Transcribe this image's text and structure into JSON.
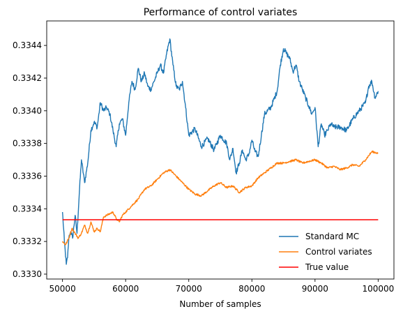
{
  "chart_data": {
    "type": "line",
    "title": "Performance of control variates",
    "xlabel": "Number of samples",
    "ylabel": "",
    "xlim": [
      47500,
      102500
    ],
    "ylim": [
      0.33297,
      0.33455
    ],
    "x_ticks": [
      50000,
      60000,
      70000,
      80000,
      90000,
      100000
    ],
    "x_tick_labels": [
      "50000",
      "60000",
      "70000",
      "80000",
      "90000",
      "100000"
    ],
    "y_ticks": [
      0.333,
      0.3332,
      0.3334,
      0.3336,
      0.3338,
      0.334,
      0.3342,
      0.3344
    ],
    "y_tick_labels": [
      "0.3330",
      "0.3332",
      "0.3334",
      "0.3336",
      "0.3338",
      "0.3340",
      "0.3342",
      "0.3344"
    ],
    "grid": false,
    "legend_position": "lower-right",
    "series": [
      {
        "name": "Standard MC",
        "color": "#1f77b4",
        "x": [
          50000,
          50300,
          50600,
          50800,
          51000,
          51300,
          51600,
          52000,
          52300,
          52700,
          53000,
          53500,
          54000,
          54500,
          55000,
          55500,
          56000,
          56500,
          57000,
          57500,
          58000,
          58500,
          59000,
          59500,
          60000,
          60500,
          61000,
          61500,
          62000,
          62500,
          63000,
          63500,
          64000,
          64500,
          65000,
          65500,
          66000,
          66500,
          67000,
          67500,
          68000,
          68500,
          69000,
          69500,
          70000,
          71000,
          72000,
          73000,
          74000,
          75000,
          76000,
          76500,
          77000,
          77500,
          78000,
          78500,
          79000,
          79500,
          80000,
          80500,
          81000,
          81500,
          82000,
          83000,
          84000,
          84500,
          85000,
          85500,
          86000,
          86500,
          87000,
          87500,
          88000,
          88500,
          89000,
          89500,
          90000,
          90500,
          91000,
          91500,
          92000,
          92500,
          93000,
          94000,
          95000,
          96000,
          97000,
          98000,
          98500,
          99000,
          99500,
          100000
        ],
        "values": [
          0.33338,
          0.3332,
          0.33306,
          0.3331,
          0.33322,
          0.33326,
          0.33322,
          0.33336,
          0.33325,
          0.33352,
          0.3337,
          0.33356,
          0.33368,
          0.33388,
          0.33393,
          0.3339,
          0.33405,
          0.334,
          0.33402,
          0.33398,
          0.33388,
          0.33378,
          0.33392,
          0.33395,
          0.33385,
          0.33405,
          0.33418,
          0.33413,
          0.33426,
          0.33418,
          0.33423,
          0.33415,
          0.33413,
          0.33418,
          0.33423,
          0.33428,
          0.33423,
          0.33435,
          0.33444,
          0.33428,
          0.33415,
          0.33413,
          0.33418,
          0.33402,
          0.33385,
          0.33389,
          0.33378,
          0.33383,
          0.33376,
          0.33385,
          0.3338,
          0.3337,
          0.33377,
          0.33362,
          0.33368,
          0.33376,
          0.3337,
          0.33373,
          0.33382,
          0.33375,
          0.33372,
          0.33385,
          0.33398,
          0.33402,
          0.33412,
          0.33428,
          0.33438,
          0.33435,
          0.33432,
          0.33424,
          0.33428,
          0.33418,
          0.33413,
          0.33408,
          0.33403,
          0.33398,
          0.33402,
          0.33378,
          0.33392,
          0.33385,
          0.33388,
          0.33392,
          0.3339,
          0.3339,
          0.33388,
          0.33395,
          0.334,
          0.33405,
          0.33415,
          0.33418,
          0.33408,
          0.33412
        ]
      },
      {
        "name": "Control variates",
        "color": "#ff7f0e",
        "x": [
          50000,
          50500,
          51000,
          51500,
          52000,
          52500,
          53000,
          53500,
          54000,
          54500,
          55000,
          55500,
          56000,
          56500,
          57000,
          57500,
          58000,
          58500,
          59000,
          59500,
          60000,
          61000,
          62000,
          63000,
          64000,
          65000,
          66000,
          67000,
          68000,
          69000,
          70000,
          71000,
          72000,
          73000,
          74000,
          75000,
          76000,
          77000,
          78000,
          79000,
          80000,
          81000,
          82000,
          83000,
          84000,
          85000,
          86000,
          87000,
          88000,
          89000,
          90000,
          91000,
          92000,
          93000,
          94000,
          95000,
          96000,
          97000,
          98000,
          99000,
          100000
        ],
        "values": [
          0.3332,
          0.33318,
          0.33322,
          0.33328,
          0.33325,
          0.33322,
          0.33325,
          0.3333,
          0.33325,
          0.33332,
          0.33326,
          0.33328,
          0.33326,
          0.33335,
          0.33336,
          0.33337,
          0.33338,
          0.33334,
          0.33332,
          0.33336,
          0.33338,
          0.33342,
          0.33346,
          0.33352,
          0.33354,
          0.33358,
          0.33362,
          0.33364,
          0.3336,
          0.33356,
          0.33352,
          0.33349,
          0.33348,
          0.33351,
          0.33354,
          0.33356,
          0.33353,
          0.33354,
          0.3335,
          0.33353,
          0.33354,
          0.33359,
          0.33362,
          0.33365,
          0.33368,
          0.33368,
          0.33369,
          0.3337,
          0.33368,
          0.33369,
          0.3337,
          0.33368,
          0.33365,
          0.33366,
          0.33364,
          0.33365,
          0.33367,
          0.33366,
          0.3337,
          0.33375,
          0.33374
        ]
      },
      {
        "name": "True value",
        "color": "#ff0000",
        "x": [
          50000,
          100000
        ],
        "values": [
          0.333333,
          0.333333
        ]
      }
    ]
  }
}
